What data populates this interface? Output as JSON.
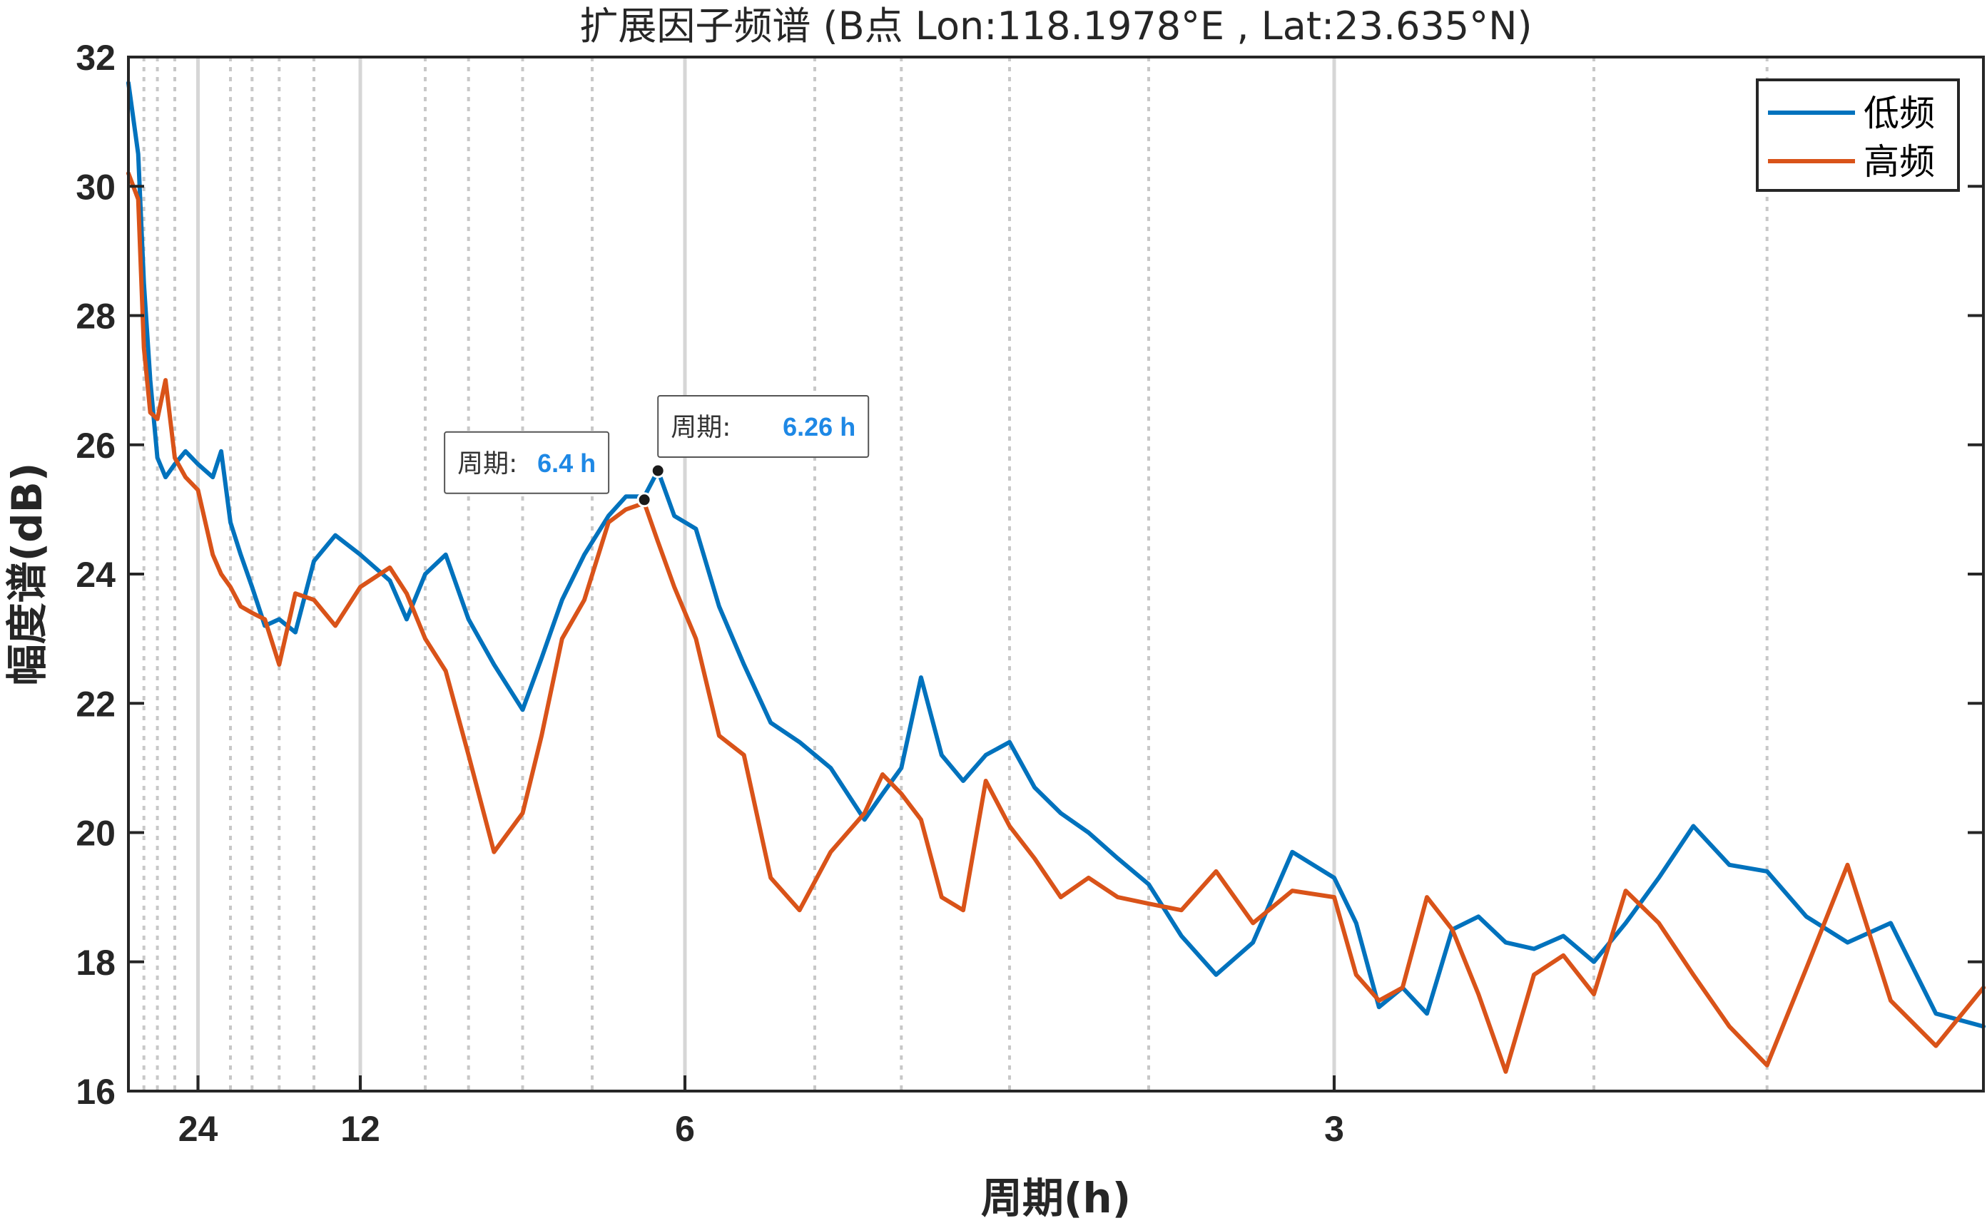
{
  "chart_data": {
    "type": "line",
    "title": "扩展因子频谱 (B点  Lon:118.1978°E , Lat:23.635°N)",
    "xlabel": "周期(h)",
    "ylabel": "幅度谱(dB)",
    "x_axis_scale": "frequency (1/period), labeled as period in hours",
    "x_range_period_h": [
      42,
      2
    ],
    "ylim": [
      16,
      32
    ],
    "y_ticks": [
      "16",
      "18",
      "20",
      "22",
      "24",
      "26",
      "28",
      "30",
      "32"
    ],
    "x_ticks": [
      "24",
      "12",
      "6",
      "3"
    ],
    "grid": "solid at labeled periods, dotted at intermediate periods",
    "legend_position": "top-right",
    "colors": {
      "低频": "#0072BD",
      "高频": "#D95319"
    },
    "series": [
      {
        "name": "低频",
        "x": [
          42,
          38,
          36,
          34,
          32,
          30,
          28,
          26,
          24,
          22,
          21,
          20,
          19,
          18,
          17,
          16,
          15,
          14,
          13,
          12,
          11,
          10.5,
          10,
          9.5,
          9,
          8.5,
          8,
          7.7,
          7.4,
          7.1,
          6.8,
          6.6,
          6.4,
          6.26,
          6.1,
          5.9,
          5.7,
          5.5,
          5.3,
          5.1,
          4.9,
          4.7,
          4.6,
          4.5,
          4.4,
          4.3,
          4.2,
          4.1,
          4.0,
          3.9,
          3.8,
          3.7,
          3.6,
          3.5,
          3.4,
          3.3,
          3.2,
          3.1,
          3.0,
          2.95,
          2.9,
          2.85,
          2.8,
          2.75,
          2.7,
          2.65,
          2.6,
          2.55,
          2.5,
          2.45,
          2.4,
          2.35,
          2.3,
          2.25,
          2.2,
          2.15,
          2.1,
          2.05,
          2.0
        ],
        "y": [
          31.6,
          30.5,
          28.5,
          27.0,
          25.8,
          25.5,
          25.7,
          25.9,
          25.7,
          25.5,
          25.9,
          24.8,
          24.3,
          23.8,
          23.2,
          23.3,
          23.1,
          24.2,
          24.6,
          24.3,
          23.9,
          23.3,
          24.0,
          24.3,
          23.3,
          22.6,
          21.9,
          22.7,
          23.6,
          24.3,
          24.9,
          25.2,
          25.2,
          25.6,
          24.9,
          24.7,
          23.5,
          22.6,
          21.7,
          21.4,
          21.0,
          20.2,
          20.6,
          21.0,
          22.4,
          21.2,
          20.8,
          21.2,
          21.4,
          20.7,
          20.3,
          20.0,
          19.6,
          19.2,
          18.4,
          17.8,
          18.3,
          19.7,
          19.3,
          18.6,
          17.3,
          17.6,
          17.2,
          18.5,
          18.7,
          18.3,
          18.2,
          18.4,
          18.0,
          18.6,
          19.3,
          20.1,
          19.5,
          19.4,
          18.7,
          18.3,
          18.6,
          17.2,
          17.0
        ]
      },
      {
        "name": "高频",
        "x": [
          42,
          38,
          36,
          34,
          32,
          30,
          28,
          26,
          24,
          22,
          21,
          20,
          19,
          18,
          17,
          16,
          15,
          14,
          13,
          12,
          11,
          10.5,
          10,
          9.5,
          9,
          8.5,
          8,
          7.7,
          7.4,
          7.1,
          6.8,
          6.6,
          6.4,
          6.26,
          6.1,
          5.9,
          5.7,
          5.5,
          5.3,
          5.1,
          4.9,
          4.7,
          4.6,
          4.5,
          4.4,
          4.3,
          4.2,
          4.1,
          4.0,
          3.9,
          3.8,
          3.7,
          3.6,
          3.5,
          3.4,
          3.3,
          3.2,
          3.1,
          3.0,
          2.95,
          2.9,
          2.85,
          2.8,
          2.75,
          2.7,
          2.65,
          2.6,
          2.55,
          2.5,
          2.45,
          2.4,
          2.35,
          2.3,
          2.25,
          2.2,
          2.15,
          2.1,
          2.05,
          2.0
        ],
        "y": [
          30.2,
          29.8,
          27.5,
          26.5,
          26.4,
          27.0,
          25.8,
          25.5,
          25.3,
          24.3,
          24.0,
          23.8,
          23.5,
          23.4,
          23.3,
          22.6,
          23.7,
          23.6,
          23.2,
          23.8,
          24.1,
          23.7,
          23.0,
          22.5,
          21.2,
          19.7,
          20.3,
          21.5,
          23.0,
          23.6,
          24.8,
          25.0,
          25.1,
          24.5,
          23.8,
          23.0,
          21.5,
          21.2,
          19.3,
          18.8,
          19.7,
          20.3,
          20.9,
          20.6,
          20.2,
          19.0,
          18.8,
          20.8,
          20.1,
          19.6,
          19.0,
          19.3,
          19.0,
          18.9,
          18.8,
          19.4,
          18.6,
          19.1,
          19.0,
          17.8,
          17.4,
          17.6,
          19.0,
          18.5,
          17.5,
          16.3,
          17.8,
          18.1,
          17.5,
          19.1,
          18.6,
          17.8,
          17.0,
          16.4,
          17.9,
          19.5,
          17.4,
          16.7,
          17.6
        ]
      }
    ],
    "data_tips": [
      {
        "label": "周期:",
        "value": "6.4 h",
        "x": 6.4,
        "y": 25.15,
        "series": "高频"
      },
      {
        "label": "周期:",
        "value": "6.26 h",
        "x": 6.26,
        "y": 25.6,
        "series": "低频"
      }
    ]
  }
}
